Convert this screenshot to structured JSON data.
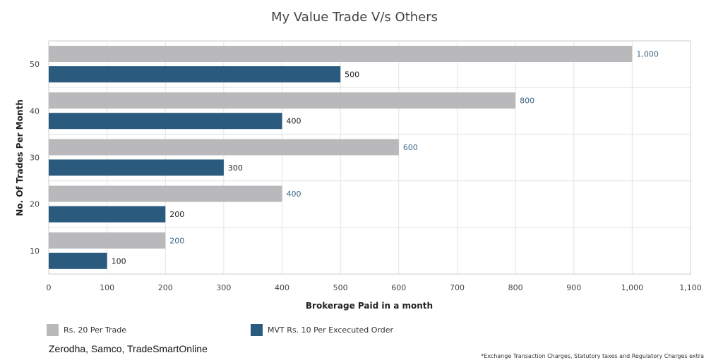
{
  "chart_data": {
    "type": "bar",
    "orientation": "horizontal",
    "title": "My Value Trade V/s Others",
    "xlabel": "Brokerage Paid in a month",
    "ylabel": "No. Of Trades Per Month",
    "categories": [
      "50",
      "40",
      "30",
      "20",
      "10"
    ],
    "xlim": [
      0,
      1100
    ],
    "xticks": [
      "0",
      "100",
      "200",
      "300",
      "400",
      "500",
      "600",
      "700",
      "800",
      "900",
      "1,000",
      "1,100"
    ],
    "grid": true,
    "legend_position": "bottom",
    "series": [
      {
        "name": "Rs. 20 Per Trade",
        "values": [
          1000,
          800,
          600,
          400,
          200
        ],
        "labels": [
          "1,000",
          "800",
          "600",
          "400",
          "200"
        ],
        "color": "#b9b9bb",
        "label_color": "#3d6687"
      },
      {
        "name": "MVT Rs. 10 Per Excecuted Order",
        "values": [
          500,
          400,
          300,
          200,
          100
        ],
        "labels": [
          "500",
          "400",
          "300",
          "200",
          "100"
        ],
        "color": "#2a5b7e",
        "label_color": "#222222"
      }
    ]
  },
  "brokers_text": "Zerodha, Samco, TradeSmartOnline",
  "footnote": "*Exchange Transaction Charges, Statutory taxes and Regulatory Charges extra"
}
